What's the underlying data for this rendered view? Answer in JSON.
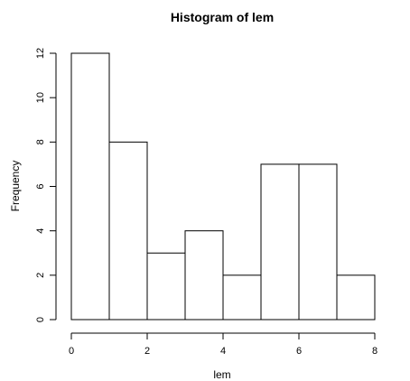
{
  "chart_data": {
    "type": "bar",
    "title": "Histogram of lem",
    "xlabel": "lem",
    "ylabel": "Frequency",
    "bins": [
      [
        0,
        1
      ],
      [
        1,
        2
      ],
      [
        2,
        3
      ],
      [
        3,
        4
      ],
      [
        4,
        5
      ],
      [
        5,
        6
      ],
      [
        6,
        7
      ],
      [
        7,
        8
      ]
    ],
    "values": [
      12,
      8,
      3,
      4,
      2,
      7,
      7,
      2
    ],
    "xlim": [
      0,
      8
    ],
    "ylim": [
      0,
      12
    ],
    "xticks": [
      0,
      2,
      4,
      6,
      8
    ],
    "yticks": [
      0,
      2,
      4,
      6,
      8,
      10,
      12
    ],
    "grid": false,
    "colors": {
      "bar_fill": "#ffffff",
      "bar_stroke": "#000000"
    }
  }
}
